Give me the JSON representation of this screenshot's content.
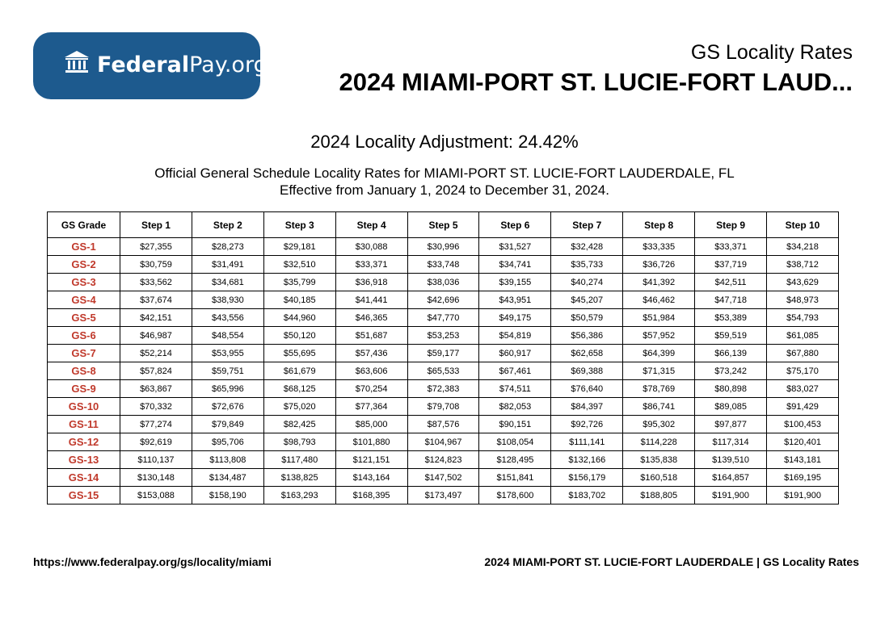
{
  "brand": {
    "bold": "Federal",
    "light": "Pay.org",
    "color": "#1d5a8e"
  },
  "header": {
    "subtitle": "GS Locality Rates",
    "title": "2024 MIAMI-PORT ST. LUCIE-FORT LAUD..."
  },
  "adjustment": "2024 Locality Adjustment: 24.42%",
  "description": {
    "line1": "Official General Schedule Locality Rates for MIAMI-PORT ST. LUCIE-FORT LAUDERDALE, FL",
    "line2": "Effective from January 1, 2024 to December 31, 2024."
  },
  "table": {
    "headers": [
      "GS Grade",
      "Step 1",
      "Step 2",
      "Step 3",
      "Step 4",
      "Step 5",
      "Step 6",
      "Step 7",
      "Step 8",
      "Step 9",
      "Step 10"
    ],
    "rows": [
      [
        "GS-1",
        "$27,355",
        "$28,273",
        "$29,181",
        "$30,088",
        "$30,996",
        "$31,527",
        "$32,428",
        "$33,335",
        "$33,371",
        "$34,218"
      ],
      [
        "GS-2",
        "$30,759",
        "$31,491",
        "$32,510",
        "$33,371",
        "$33,748",
        "$34,741",
        "$35,733",
        "$36,726",
        "$37,719",
        "$38,712"
      ],
      [
        "GS-3",
        "$33,562",
        "$34,681",
        "$35,799",
        "$36,918",
        "$38,036",
        "$39,155",
        "$40,274",
        "$41,392",
        "$42,511",
        "$43,629"
      ],
      [
        "GS-4",
        "$37,674",
        "$38,930",
        "$40,185",
        "$41,441",
        "$42,696",
        "$43,951",
        "$45,207",
        "$46,462",
        "$47,718",
        "$48,973"
      ],
      [
        "GS-5",
        "$42,151",
        "$43,556",
        "$44,960",
        "$46,365",
        "$47,770",
        "$49,175",
        "$50,579",
        "$51,984",
        "$53,389",
        "$54,793"
      ],
      [
        "GS-6",
        "$46,987",
        "$48,554",
        "$50,120",
        "$51,687",
        "$53,253",
        "$54,819",
        "$56,386",
        "$57,952",
        "$59,519",
        "$61,085"
      ],
      [
        "GS-7",
        "$52,214",
        "$53,955",
        "$55,695",
        "$57,436",
        "$59,177",
        "$60,917",
        "$62,658",
        "$64,399",
        "$66,139",
        "$67,880"
      ],
      [
        "GS-8",
        "$57,824",
        "$59,751",
        "$61,679",
        "$63,606",
        "$65,533",
        "$67,461",
        "$69,388",
        "$71,315",
        "$73,242",
        "$75,170"
      ],
      [
        "GS-9",
        "$63,867",
        "$65,996",
        "$68,125",
        "$70,254",
        "$72,383",
        "$74,511",
        "$76,640",
        "$78,769",
        "$80,898",
        "$83,027"
      ],
      [
        "GS-10",
        "$70,332",
        "$72,676",
        "$75,020",
        "$77,364",
        "$79,708",
        "$82,053",
        "$84,397",
        "$86,741",
        "$89,085",
        "$91,429"
      ],
      [
        "GS-11",
        "$77,274",
        "$79,849",
        "$82,425",
        "$85,000",
        "$87,576",
        "$90,151",
        "$92,726",
        "$95,302",
        "$97,877",
        "$100,453"
      ],
      [
        "GS-12",
        "$92,619",
        "$95,706",
        "$98,793",
        "$101,880",
        "$104,967",
        "$108,054",
        "$111,141",
        "$114,228",
        "$117,314",
        "$120,401"
      ],
      [
        "GS-13",
        "$110,137",
        "$113,808",
        "$117,480",
        "$121,151",
        "$124,823",
        "$128,495",
        "$132,166",
        "$135,838",
        "$139,510",
        "$143,181"
      ],
      [
        "GS-14",
        "$130,148",
        "$134,487",
        "$138,825",
        "$143,164",
        "$147,502",
        "$151,841",
        "$156,179",
        "$160,518",
        "$164,857",
        "$169,195"
      ],
      [
        "GS-15",
        "$153,088",
        "$158,190",
        "$163,293",
        "$168,395",
        "$173,497",
        "$178,600",
        "$183,702",
        "$188,805",
        "$191,900",
        "$191,900"
      ]
    ]
  },
  "footer": {
    "url": "https://www.federalpay.org/gs/locality/miami",
    "label": "2024 MIAMI-PORT ST. LUCIE-FORT LAUDERDALE | GS Locality Rates"
  }
}
